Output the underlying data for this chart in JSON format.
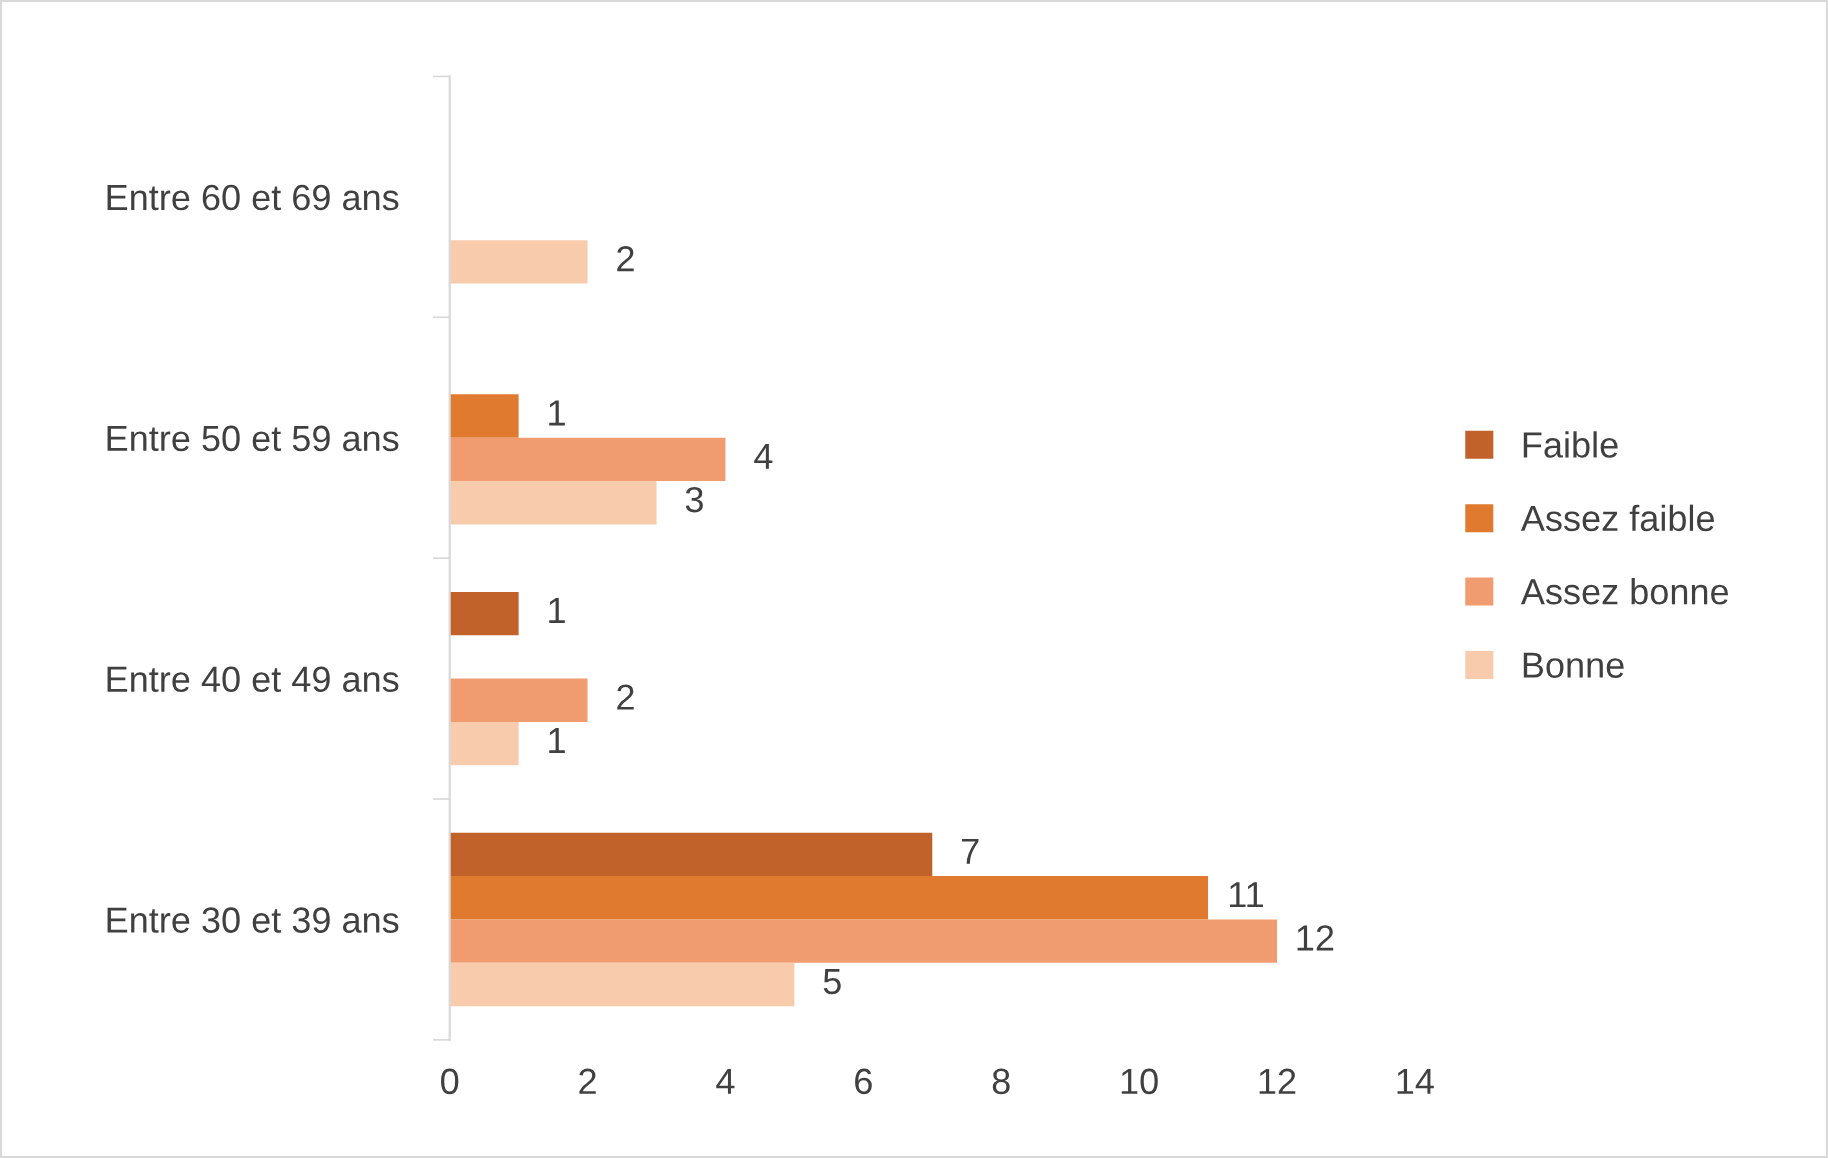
{
  "chart_data": {
    "type": "bar",
    "orientation": "horizontal",
    "categories": [
      "Entre 60 et 69 ans",
      "Entre 50 et 59 ans",
      "Entre 40 et 49 ans",
      "Entre 30 et 39 ans"
    ],
    "series": [
      {
        "name": "Faible",
        "color": "#c0622a",
        "values": [
          null,
          null,
          1,
          7
        ]
      },
      {
        "name": "Assez faible",
        "color": "#e07a2f",
        "values": [
          null,
          1,
          null,
          11
        ]
      },
      {
        "name": "Assez bonne",
        "color": "#f09b70",
        "values": [
          null,
          4,
          2,
          12
        ]
      },
      {
        "name": "Bonne",
        "color": "#f8cbad",
        "values": [
          2,
          3,
          1,
          5
        ]
      }
    ],
    "xlim": [
      0,
      14
    ],
    "xticks": [
      0,
      2,
      4,
      6,
      8,
      10,
      12,
      14
    ],
    "data_labels": true,
    "grid": false,
    "legend": "right"
  }
}
